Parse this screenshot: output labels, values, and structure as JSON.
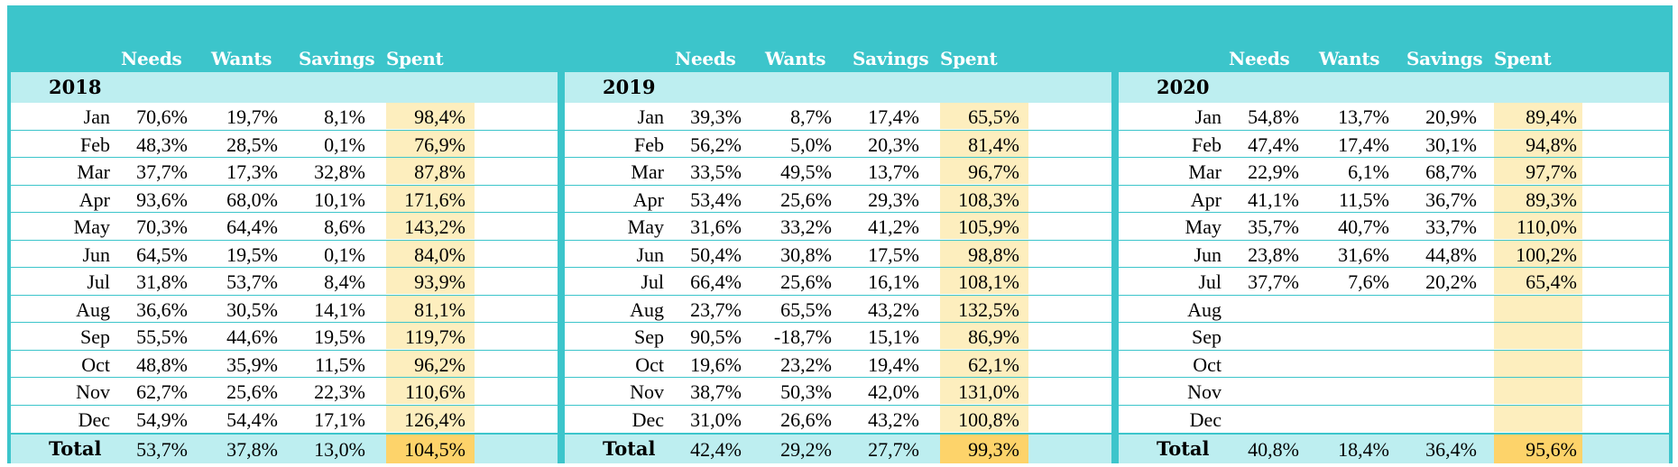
{
  "columns": {
    "needs": "Needs",
    "wants": "Wants",
    "savings": "Savings",
    "spent": "Spent"
  },
  "total_label": "Total",
  "tables": [
    {
      "year": "2018",
      "rows": [
        {
          "month": "Jan",
          "needs": "70,6%",
          "wants": "19,7%",
          "savings": "8,1%",
          "spent": "98,4%"
        },
        {
          "month": "Feb",
          "needs": "48,3%",
          "wants": "28,5%",
          "savings": "0,1%",
          "spent": "76,9%"
        },
        {
          "month": "Mar",
          "needs": "37,7%",
          "wants": "17,3%",
          "savings": "32,8%",
          "spent": "87,8%"
        },
        {
          "month": "Apr",
          "needs": "93,6%",
          "wants": "68,0%",
          "savings": "10,1%",
          "spent": "171,6%"
        },
        {
          "month": "May",
          "needs": "70,3%",
          "wants": "64,4%",
          "savings": "8,6%",
          "spent": "143,2%"
        },
        {
          "month": "Jun",
          "needs": "64,5%",
          "wants": "19,5%",
          "savings": "0,1%",
          "spent": "84,0%"
        },
        {
          "month": "Jul",
          "needs": "31,8%",
          "wants": "53,7%",
          "savings": "8,4%",
          "spent": "93,9%"
        },
        {
          "month": "Aug",
          "needs": "36,6%",
          "wants": "30,5%",
          "savings": "14,1%",
          "spent": "81,1%"
        },
        {
          "month": "Sep",
          "needs": "55,5%",
          "wants": "44,6%",
          "savings": "19,5%",
          "spent": "119,7%"
        },
        {
          "month": "Oct",
          "needs": "48,8%",
          "wants": "35,9%",
          "savings": "11,5%",
          "spent": "96,2%"
        },
        {
          "month": "Nov",
          "needs": "62,7%",
          "wants": "25,6%",
          "savings": "22,3%",
          "spent": "110,6%"
        },
        {
          "month": "Dec",
          "needs": "54,9%",
          "wants": "54,4%",
          "savings": "17,1%",
          "spent": "126,4%"
        }
      ],
      "total": {
        "needs": "53,7%",
        "wants": "37,8%",
        "savings": "13,0%",
        "spent": "104,5%"
      }
    },
    {
      "year": "2019",
      "rows": [
        {
          "month": "Jan",
          "needs": "39,3%",
          "wants": "8,7%",
          "savings": "17,4%",
          "spent": "65,5%"
        },
        {
          "month": "Feb",
          "needs": "56,2%",
          "wants": "5,0%",
          "savings": "20,3%",
          "spent": "81,4%"
        },
        {
          "month": "Mar",
          "needs": "33,5%",
          "wants": "49,5%",
          "savings": "13,7%",
          "spent": "96,7%"
        },
        {
          "month": "Apr",
          "needs": "53,4%",
          "wants": "25,6%",
          "savings": "29,3%",
          "spent": "108,3%"
        },
        {
          "month": "May",
          "needs": "31,6%",
          "wants": "33,2%",
          "savings": "41,2%",
          "spent": "105,9%"
        },
        {
          "month": "Jun",
          "needs": "50,4%",
          "wants": "30,8%",
          "savings": "17,5%",
          "spent": "98,8%"
        },
        {
          "month": "Jul",
          "needs": "66,4%",
          "wants": "25,6%",
          "savings": "16,1%",
          "spent": "108,1%"
        },
        {
          "month": "Aug",
          "needs": "23,7%",
          "wants": "65,5%",
          "savings": "43,2%",
          "spent": "132,5%"
        },
        {
          "month": "Sep",
          "needs": "90,5%",
          "wants": "-18,7%",
          "savings": "15,1%",
          "spent": "86,9%"
        },
        {
          "month": "Oct",
          "needs": "19,6%",
          "wants": "23,2%",
          "savings": "19,4%",
          "spent": "62,1%"
        },
        {
          "month": "Nov",
          "needs": "38,7%",
          "wants": "50,3%",
          "savings": "42,0%",
          "spent": "131,0%"
        },
        {
          "month": "Dec",
          "needs": "31,0%",
          "wants": "26,6%",
          "savings": "43,2%",
          "spent": "100,8%"
        }
      ],
      "total": {
        "needs": "42,4%",
        "wants": "29,2%",
        "savings": "27,7%",
        "spent": "99,3%"
      }
    },
    {
      "year": "2020",
      "rows": [
        {
          "month": "Jan",
          "needs": "54,8%",
          "wants": "13,7%",
          "savings": "20,9%",
          "spent": "89,4%"
        },
        {
          "month": "Feb",
          "needs": "47,4%",
          "wants": "17,4%",
          "savings": "30,1%",
          "spent": "94,8%"
        },
        {
          "month": "Mar",
          "needs": "22,9%",
          "wants": "6,1%",
          "savings": "68,7%",
          "spent": "97,7%"
        },
        {
          "month": "Apr",
          "needs": "41,1%",
          "wants": "11,5%",
          "savings": "36,7%",
          "spent": "89,3%"
        },
        {
          "month": "May",
          "needs": "35,7%",
          "wants": "40,7%",
          "savings": "33,7%",
          "spent": "110,0%"
        },
        {
          "month": "Jun",
          "needs": "23,8%",
          "wants": "31,6%",
          "savings": "44,8%",
          "spent": "100,2%"
        },
        {
          "month": "Jul",
          "needs": "37,7%",
          "wants": "7,6%",
          "savings": "20,2%",
          "spent": "65,4%"
        },
        {
          "month": "Aug",
          "needs": "",
          "wants": "",
          "savings": "",
          "spent": ""
        },
        {
          "month": "Sep",
          "needs": "",
          "wants": "",
          "savings": "",
          "spent": ""
        },
        {
          "month": "Oct",
          "needs": "",
          "wants": "",
          "savings": "",
          "spent": ""
        },
        {
          "month": "Nov",
          "needs": "",
          "wants": "",
          "savings": "",
          "spent": ""
        },
        {
          "month": "Dec",
          "needs": "",
          "wants": "",
          "savings": "",
          "spent": ""
        }
      ],
      "total": {
        "needs": "40,8%",
        "wants": "18,4%",
        "savings": "36,4%",
        "spent": "95,6%"
      }
    }
  ],
  "colors": {
    "frame": "#3cc5cb",
    "band": "#bdeef0",
    "spent_cell": "#fdeebe",
    "spent_total": "#fdd36a",
    "header_text": "#ffffff"
  }
}
